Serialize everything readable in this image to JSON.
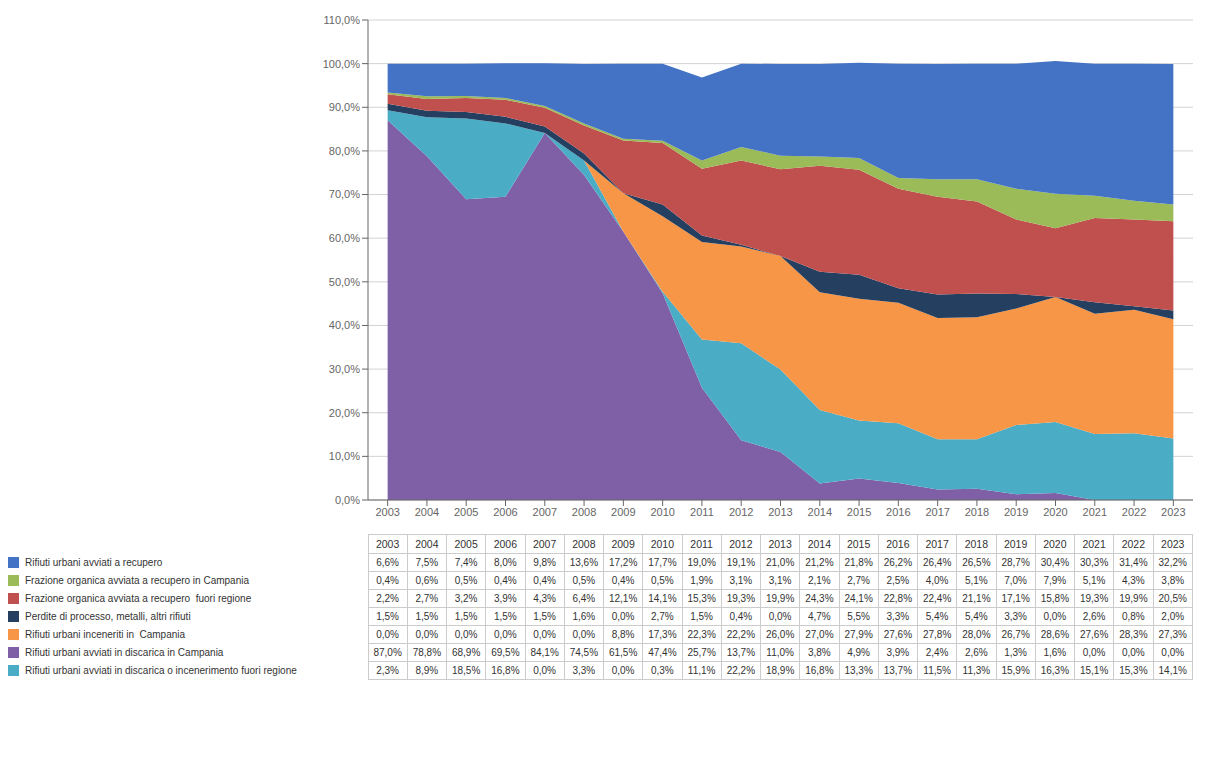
{
  "chart_data": [
    {
      "type": "area",
      "stacked": true,
      "grid": true,
      "categories": [
        "2003",
        "2004",
        "2005",
        "2006",
        "2007",
        "2008",
        "2009",
        "2010",
        "2011",
        "2012",
        "2013",
        "2014",
        "2015",
        "2016",
        "2017",
        "2018",
        "2019",
        "2020",
        "2021",
        "2022",
        "2023"
      ],
      "ylim": [
        0,
        110
      ],
      "yticks": [
        {
          "value": 0,
          "label": "0,0%"
        },
        {
          "value": 10,
          "label": "10,0%"
        },
        {
          "value": 20,
          "label": "20,0%"
        },
        {
          "value": 30,
          "label": "30,0%"
        },
        {
          "value": 40,
          "label": "40,0%"
        },
        {
          "value": 50,
          "label": "50,0%"
        },
        {
          "value": 60,
          "label": "60,0%"
        },
        {
          "value": 70,
          "label": "70,0%"
        },
        {
          "value": 80,
          "label": "80,0%"
        },
        {
          "value": 90,
          "label": "90,0%"
        },
        {
          "value": 100,
          "label": "100,0%"
        },
        {
          "value": 110,
          "label": "110,0%"
        }
      ],
      "series": [
        {
          "name": "Rifiuti urbani avviati in discarica in Campania",
          "color": "#7F5FA6",
          "values": [
            87.0,
            78.8,
            68.9,
            69.5,
            84.1,
            74.5,
            61.5,
            47.4,
            25.7,
            13.7,
            11.0,
            3.8,
            4.9,
            3.9,
            2.4,
            2.6,
            1.3,
            1.6,
            0.0,
            0.0,
            0.0
          ]
        },
        {
          "name": "Rifiuti urbani avviati in discarica o incenerimento fuori regione",
          "color": "#4BACC6",
          "values": [
            2.3,
            8.9,
            18.5,
            16.8,
            0.0,
            3.3,
            0.0,
            0.3,
            11.1,
            22.2,
            18.9,
            16.8,
            13.3,
            13.7,
            11.5,
            11.3,
            15.9,
            16.3,
            15.1,
            15.3,
            14.1
          ]
        },
        {
          "name": "Rifiuti urbani inceneriti in  Campania",
          "color": "#F79646",
          "values": [
            0.0,
            0.0,
            0.0,
            0.0,
            0.0,
            0.0,
            8.8,
            17.3,
            22.3,
            22.2,
            26.0,
            27.0,
            27.9,
            27.6,
            27.8,
            28.0,
            26.7,
            28.6,
            27.6,
            28.3,
            27.3
          ]
        },
        {
          "name": "Perdite di processo, metalli, altri rifiuti",
          "color": "#243F60",
          "values": [
            1.5,
            1.5,
            1.5,
            1.5,
            1.5,
            1.6,
            0.0,
            2.7,
            1.5,
            0.4,
            0.0,
            4.7,
            5.5,
            3.3,
            5.4,
            5.4,
            3.3,
            0.0,
            2.6,
            0.8,
            2.0
          ]
        },
        {
          "name": "Frazione organica avviata a recupero  fuori regione",
          "color": "#C0504D",
          "values": [
            2.2,
            2.7,
            3.2,
            3.9,
            4.3,
            6.4,
            12.1,
            14.1,
            15.3,
            19.3,
            19.9,
            24.3,
            24.1,
            22.8,
            22.4,
            21.1,
            17.1,
            15.8,
            19.3,
            19.9,
            20.5
          ]
        },
        {
          "name": "Frazione organica avviata a recupero in Campania",
          "color": "#9BBB59",
          "values": [
            0.4,
            0.6,
            0.5,
            0.4,
            0.4,
            0.5,
            0.4,
            0.5,
            1.9,
            3.1,
            3.1,
            2.1,
            2.7,
            2.5,
            4.0,
            5.1,
            7.0,
            7.9,
            5.1,
            4.3,
            3.8
          ]
        },
        {
          "name": "Rifiuti urbani avviati a recupero",
          "color": "#4472C4",
          "values": [
            6.6,
            7.5,
            7.4,
            8.0,
            9.8,
            13.6,
            17.2,
            17.7,
            19.0,
            19.1,
            21.0,
            21.2,
            21.8,
            26.2,
            26.4,
            26.5,
            28.7,
            30.4,
            30.3,
            31.4,
            32.2
          ]
        }
      ]
    },
    {
      "type": "table",
      "categories": [
        "2003",
        "2004",
        "2005",
        "2006",
        "2007",
        "2008",
        "2009",
        "2010",
        "2011",
        "2012",
        "2013",
        "2014",
        "2015",
        "2016",
        "2017",
        "2018",
        "2019",
        "2020",
        "2021",
        "2022",
        "2023"
      ],
      "series": [
        {
          "name": "Rifiuti urbani avviati a recupero",
          "color": "#4472C4",
          "values": [
            6.6,
            7.5,
            7.4,
            8.0,
            9.8,
            13.6,
            17.2,
            17.7,
            19.0,
            19.1,
            21.0,
            21.2,
            21.8,
            26.2,
            26.4,
            26.5,
            28.7,
            30.4,
            30.3,
            31.4,
            32.2
          ],
          "value_labels": [
            "6,6%",
            "7,5%",
            "7,4%",
            "8,0%",
            "9,8%",
            "13,6%",
            "17,2%",
            "17,7%",
            "19,0%",
            "19,1%",
            "21,0%",
            "21,2%",
            "21,8%",
            "26,2%",
            "26,4%",
            "26,5%",
            "28,7%",
            "30,4%",
            "30,3%",
            "31,4%",
            "32,2%"
          ]
        },
        {
          "name": "Frazione organica avviata a recupero in Campania",
          "color": "#9BBB59",
          "values": [
            0.4,
            0.6,
            0.5,
            0.4,
            0.4,
            0.5,
            0.4,
            0.5,
            1.9,
            3.1,
            3.1,
            2.1,
            2.7,
            2.5,
            4.0,
            5.1,
            7.0,
            7.9,
            5.1,
            4.3,
            3.8
          ],
          "value_labels": [
            "0,4%",
            "0,6%",
            "0,5%",
            "0,4%",
            "0,4%",
            "0,5%",
            "0,4%",
            "0,5%",
            "1,9%",
            "3,1%",
            "3,1%",
            "2,1%",
            "2,7%",
            "2,5%",
            "4,0%",
            "5,1%",
            "7,0%",
            "7,9%",
            "5,1%",
            "4,3%",
            "3,8%"
          ]
        },
        {
          "name": "Frazione organica avviata a recupero  fuori regione",
          "color": "#C0504D",
          "values": [
            2.2,
            2.7,
            3.2,
            3.9,
            4.3,
            6.4,
            12.1,
            14.1,
            15.3,
            19.3,
            19.9,
            24.3,
            24.1,
            22.8,
            22.4,
            21.1,
            17.1,
            15.8,
            19.3,
            19.9,
            20.5
          ],
          "value_labels": [
            "2,2%",
            "2,7%",
            "3,2%",
            "3,9%",
            "4,3%",
            "6,4%",
            "12,1%",
            "14,1%",
            "15,3%",
            "19,3%",
            "19,9%",
            "24,3%",
            "24,1%",
            "22,8%",
            "22,4%",
            "21,1%",
            "17,1%",
            "15,8%",
            "19,3%",
            "19,9%",
            "20,5%"
          ]
        },
        {
          "name": "Perdite di processo, metalli, altri rifiuti",
          "color": "#243F60",
          "values": [
            1.5,
            1.5,
            1.5,
            1.5,
            1.5,
            1.6,
            0.0,
            2.7,
            1.5,
            0.4,
            0.0,
            4.7,
            5.5,
            3.3,
            5.4,
            5.4,
            3.3,
            0.0,
            2.6,
            0.8,
            2.0
          ],
          "value_labels": [
            "1,5%",
            "1,5%",
            "1,5%",
            "1,5%",
            "1,5%",
            "1,6%",
            "0,0%",
            "2,7%",
            "1,5%",
            "0,4%",
            "0,0%",
            "4,7%",
            "5,5%",
            "3,3%",
            "5,4%",
            "5,4%",
            "3,3%",
            "0,0%",
            "2,6%",
            "0,8%",
            "2,0%"
          ]
        },
        {
          "name": "Rifiuti urbani inceneriti in  Campania",
          "color": "#F79646",
          "values": [
            0.0,
            0.0,
            0.0,
            0.0,
            0.0,
            0.0,
            8.8,
            17.3,
            22.3,
            22.2,
            26.0,
            27.0,
            27.9,
            27.6,
            27.8,
            28.0,
            26.7,
            28.6,
            27.6,
            28.3,
            27.3
          ],
          "value_labels": [
            "0,0%",
            "0,0%",
            "0,0%",
            "0,0%",
            "0,0%",
            "0,0%",
            "8,8%",
            "17,3%",
            "22,3%",
            "22,2%",
            "26,0%",
            "27,0%",
            "27,9%",
            "27,6%",
            "27,8%",
            "28,0%",
            "26,7%",
            "28,6%",
            "27,6%",
            "28,3%",
            "27,3%"
          ]
        },
        {
          "name": "Rifiuti urbani avviati in discarica in Campania",
          "color": "#7F5FA6",
          "values": [
            87.0,
            78.8,
            68.9,
            69.5,
            84.1,
            74.5,
            61.5,
            47.4,
            25.7,
            13.7,
            11.0,
            3.8,
            4.9,
            3.9,
            2.4,
            2.6,
            1.3,
            1.6,
            0.0,
            0.0,
            0.0
          ],
          "value_labels": [
            "87,0%",
            "78,8%",
            "68,9%",
            "69,5%",
            "84,1%",
            "74,5%",
            "61,5%",
            "47,4%",
            "25,7%",
            "13,7%",
            "11,0%",
            "3,8%",
            "4,9%",
            "3,9%",
            "2,4%",
            "2,6%",
            "1,3%",
            "1,6%",
            "0,0%",
            "0,0%",
            "0,0%"
          ]
        },
        {
          "name": "Rifiuti urbani avviati in discarica o incenerimento fuori regione",
          "color": "#4BACC6",
          "values": [
            2.3,
            8.9,
            18.5,
            16.8,
            0.0,
            3.3,
            0.0,
            0.3,
            11.1,
            22.2,
            18.9,
            16.8,
            13.3,
            13.7,
            11.5,
            11.3,
            15.9,
            16.3,
            15.1,
            15.3,
            14.1
          ],
          "value_labels": [
            "2,3%",
            "8,9%",
            "18,5%",
            "16,8%",
            "0,0%",
            "3,3%",
            "0,0%",
            "0,3%",
            "11,1%",
            "22,2%",
            "18,9%",
            "16,8%",
            "13,3%",
            "13,7%",
            "11,5%",
            "11,3%",
            "15,9%",
            "16,3%",
            "15,1%",
            "15,3%",
            "14,1%"
          ]
        }
      ]
    }
  ]
}
